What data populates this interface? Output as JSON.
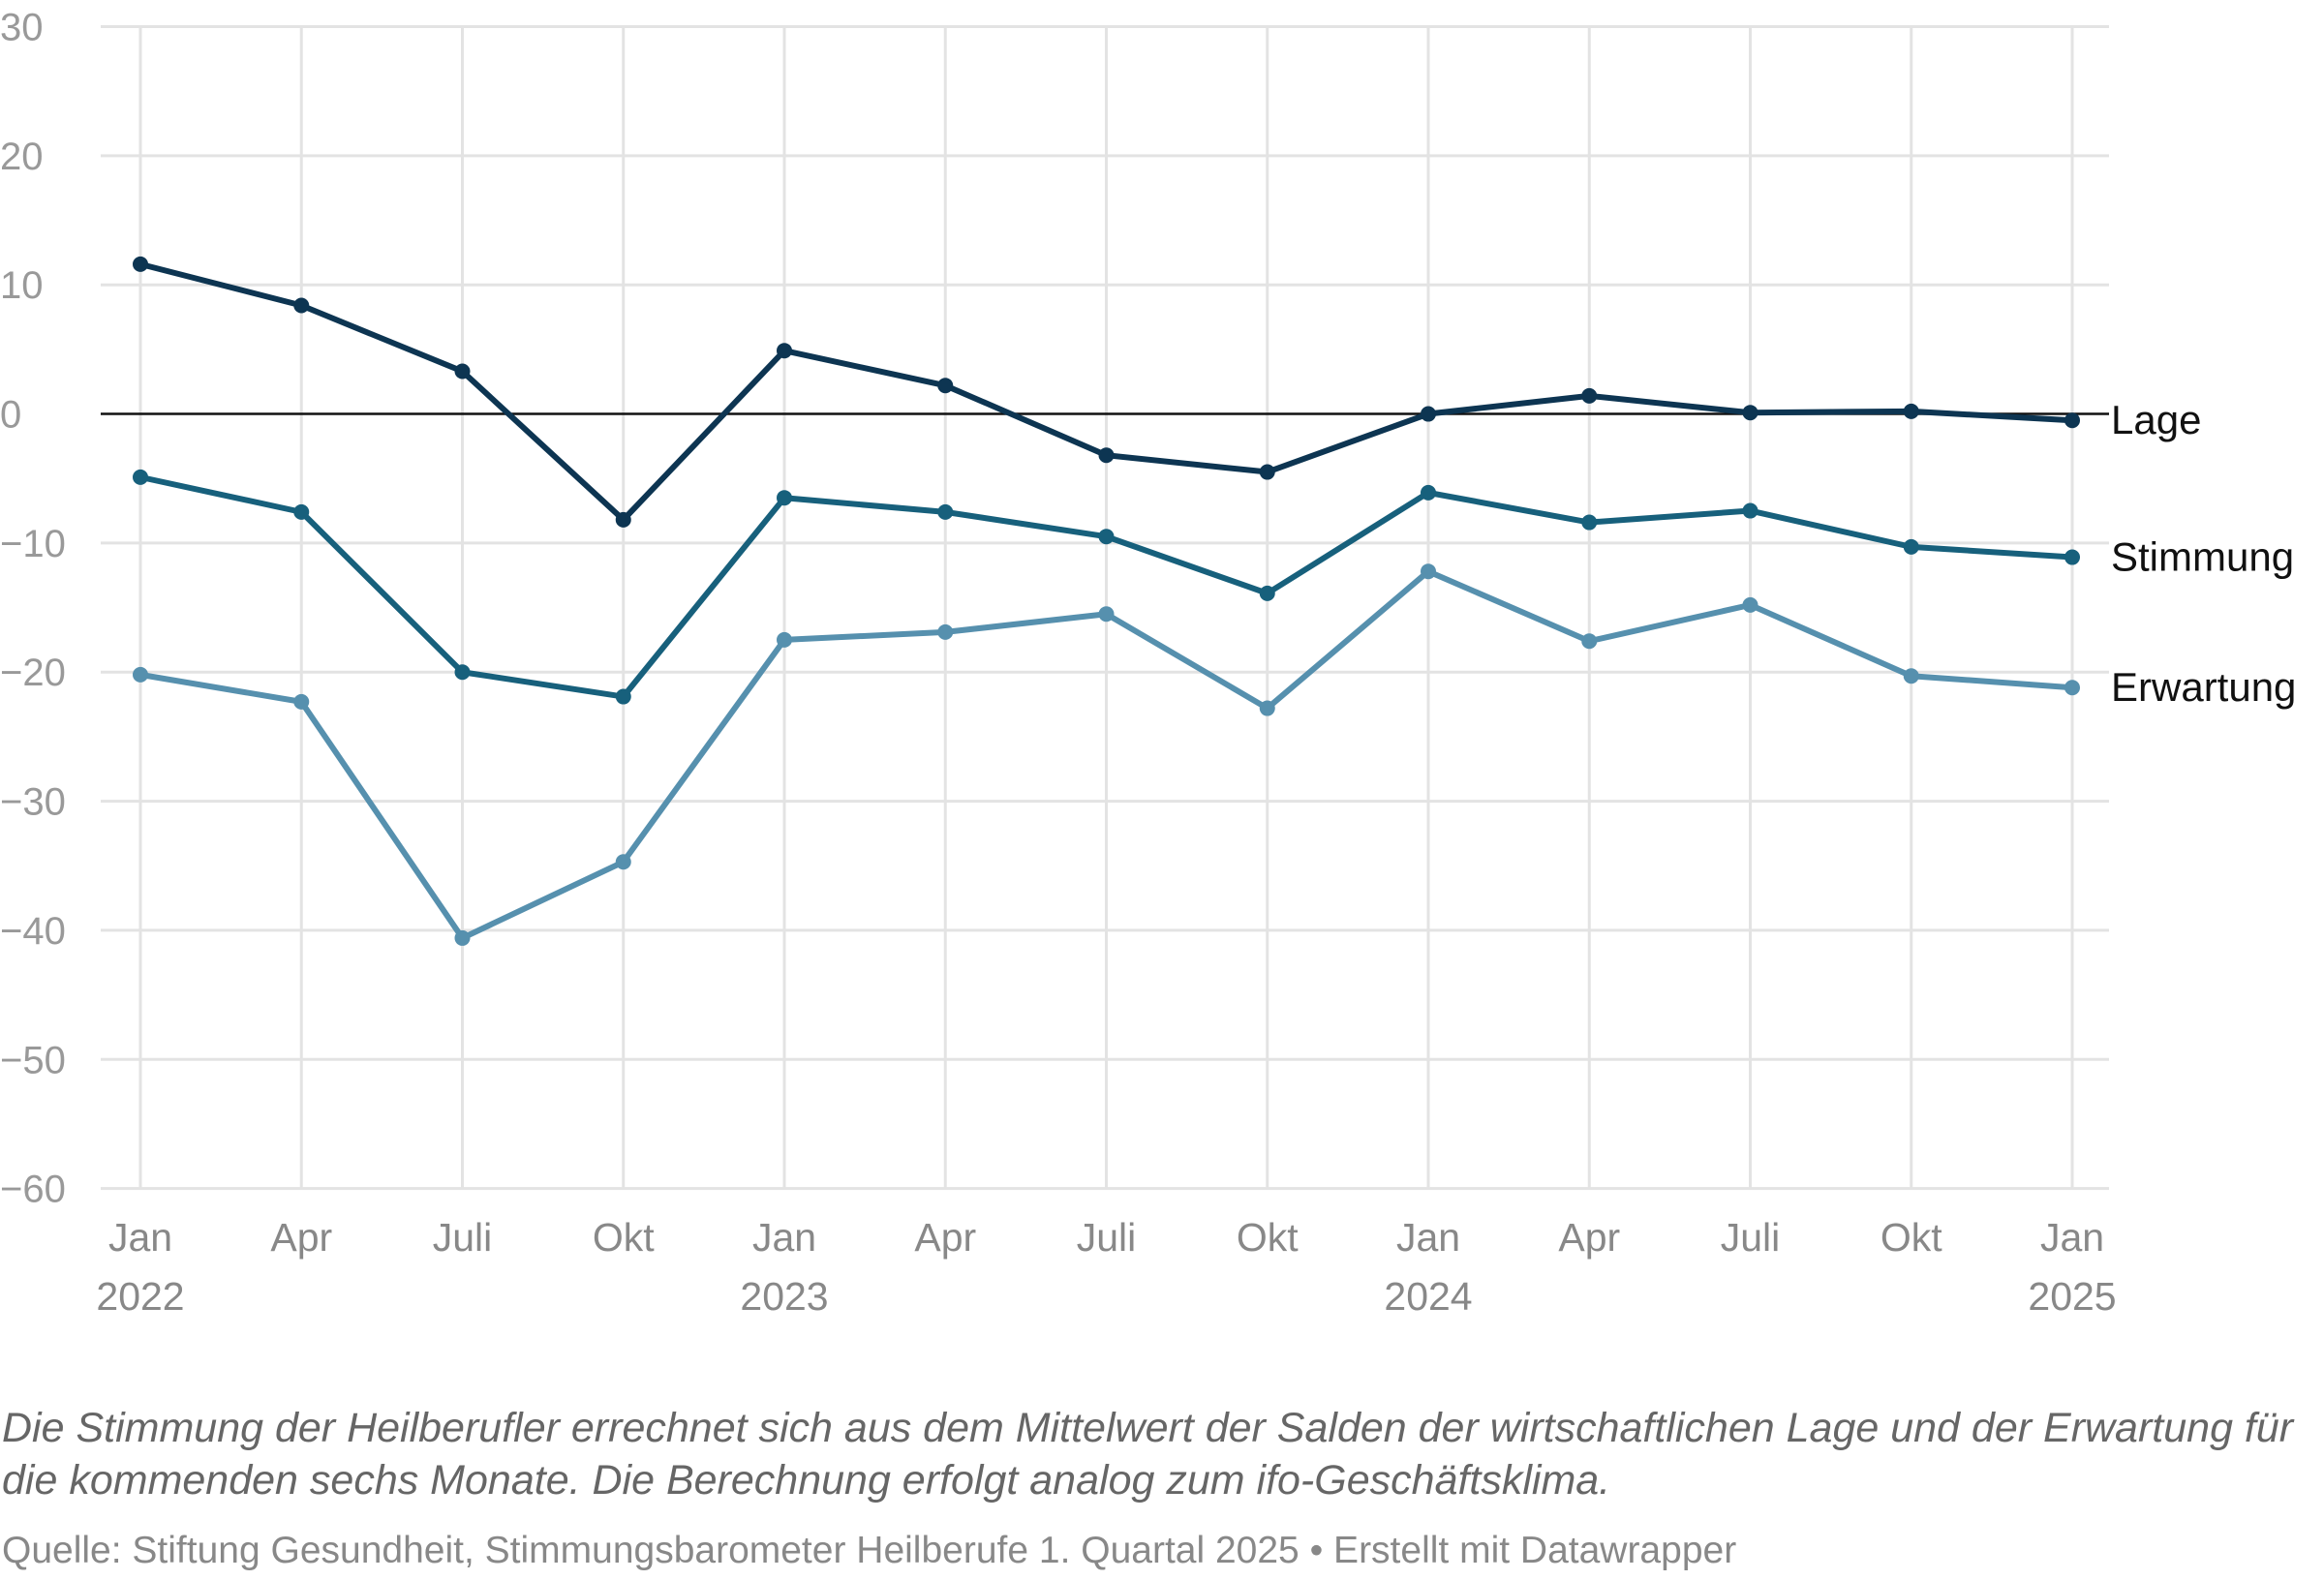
{
  "chart_data": {
    "type": "line",
    "x": [
      "Jan 2022",
      "Apr 2022",
      "Juli 2022",
      "Okt 2022",
      "Jan 2023",
      "Apr 2023",
      "Juli 2023",
      "Okt 2023",
      "Jan 2024",
      "Apr 2024",
      "Juli 2024",
      "Okt 2024",
      "Jan 2025"
    ],
    "x_tick_labels": [
      {
        "line1": "Jan",
        "line2": "2022"
      },
      {
        "line1": "Apr",
        "line2": ""
      },
      {
        "line1": "Juli",
        "line2": ""
      },
      {
        "line1": "Okt",
        "line2": ""
      },
      {
        "line1": "Jan",
        "line2": "2023"
      },
      {
        "line1": "Apr",
        "line2": ""
      },
      {
        "line1": "Juli",
        "line2": ""
      },
      {
        "line1": "Okt",
        "line2": ""
      },
      {
        "line1": "Jan",
        "line2": "2024"
      },
      {
        "line1": "Apr",
        "line2": ""
      },
      {
        "line1": "Juli",
        "line2": ""
      },
      {
        "line1": "Okt",
        "line2": ""
      },
      {
        "line1": "Jan",
        "line2": "2025"
      }
    ],
    "y_ticks": [
      30,
      20,
      10,
      0,
      -10,
      -20,
      -30,
      -40,
      -50,
      -60
    ],
    "ylim": [
      -60,
      30
    ],
    "grid": true,
    "legend": "direct labels at line ends (right)",
    "series": [
      {
        "name": "Lage",
        "color": "#0d3552",
        "values": [
          11.6,
          8.4,
          3.3,
          -8.2,
          4.9,
          2.2,
          -3.2,
          -4.5,
          0.0,
          1.4,
          0.1,
          0.2,
          -0.5
        ]
      },
      {
        "name": "Stimmung",
        "color": "#17607c",
        "values": [
          -4.9,
          -7.6,
          -20.0,
          -21.9,
          -6.5,
          -7.6,
          -9.5,
          -13.9,
          -6.1,
          -8.4,
          -7.5,
          -10.3,
          -11.1
        ]
      },
      {
        "name": "Erwartung",
        "color": "#5690ae",
        "values": [
          -20.2,
          -22.3,
          -40.6,
          -34.7,
          -17.5,
          -16.9,
          -15.5,
          -22.8,
          -12.2,
          -17.6,
          -14.8,
          -20.3,
          -21.2
        ]
      }
    ]
  },
  "notes": "Die Stimmung der Heilberufler errechnet sich aus dem Mittelwert der Salden der wirtschaftlichen Lage und der Erwartung für die kommenden sechs Monate. Die Berechnung erfolgt analog zum ifo-Geschäftsklima.",
  "source": "Quelle: Stiftung Gesundheit, Stimmungsbarometer Heilberufe 1. Quartal 2025 • Erstellt mit Datawrapper"
}
